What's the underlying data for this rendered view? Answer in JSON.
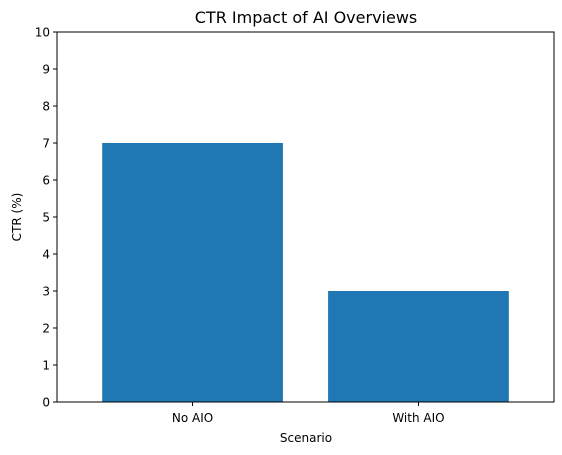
{
  "chart_data": {
    "type": "bar",
    "title": "CTR Impact of AI Overviews",
    "xlabel": "Scenario",
    "ylabel": "CTR (%)",
    "categories": [
      "No AIO",
      "With AIO"
    ],
    "values": [
      7,
      3
    ],
    "ylim": [
      0,
      10
    ],
    "yticks": [
      0,
      1,
      2,
      3,
      4,
      5,
      6,
      7,
      8,
      9,
      10
    ],
    "grid": false,
    "legend": "none",
    "bar_color": "#1f77b4"
  }
}
